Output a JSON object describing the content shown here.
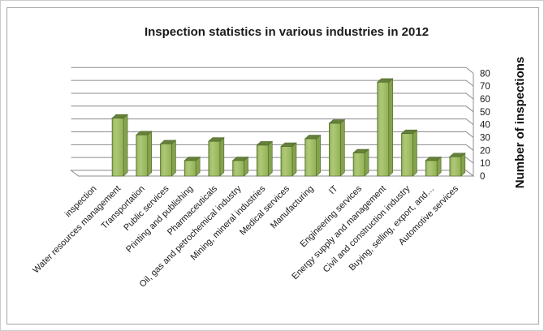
{
  "title": "Inspection statistics in various industries in 2012",
  "y_axis_title": "Number of inspections",
  "frame": {
    "border_color": "#a6a6a6"
  },
  "chart_data": {
    "type": "bar",
    "style": "3d-column",
    "title": "Inspection statistics in various industries in 2012",
    "xlabel": "",
    "ylabel": "Number of inspections",
    "ylim": [
      0,
      80
    ],
    "ytick_step": 10,
    "yticks": [
      0,
      10,
      20,
      30,
      40,
      50,
      60,
      70,
      80
    ],
    "grid": true,
    "legend": false,
    "categories": [
      "inspection",
      "Water resources management",
      "Transportation",
      "Public services",
      "Printing and publishing",
      "Pharmaceuticals",
      "Oil, gas and petrochemical industry",
      "Mining, mineral industries",
      "Medical services",
      "Manufacturing",
      "IT",
      "Engineering services",
      "Energy supply and management",
      "Civil and construction industry",
      "Buying, selling, export, and…",
      "Automotive services"
    ],
    "values": [
      0,
      45,
      32,
      25,
      12,
      27,
      12,
      24,
      23,
      29,
      41,
      18,
      73,
      33,
      12,
      15
    ],
    "colors": {
      "bar_front": "#9cba5c",
      "bar_front_edge": "#6f8c3e",
      "bar_front_light": "#afc877",
      "bar_top": "#64803a",
      "bar_side": "#85a24d",
      "bar_stroke": "#4f6628",
      "gridline": "#8c8c8c",
      "tick_text": "#1a1a1a",
      "label_text": "#1a1a1a"
    }
  }
}
